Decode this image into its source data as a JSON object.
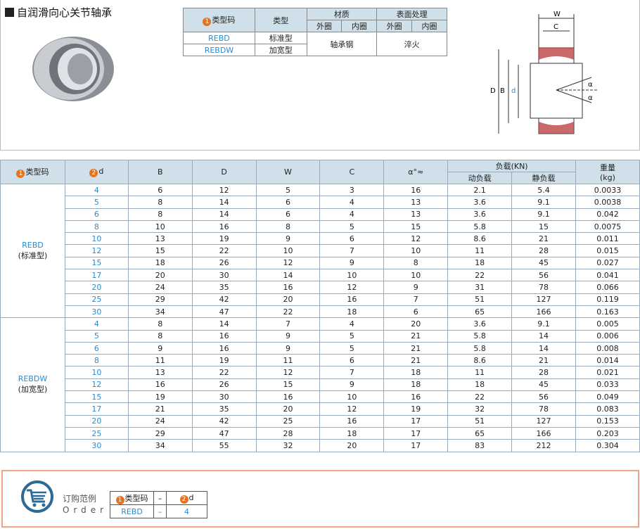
{
  "title": "自润滑向心关节轴承",
  "spec": {
    "h_type_code": "类型码",
    "h_type": "类型",
    "h_material": "材质",
    "h_surface": "表面处理",
    "outer": "外圈",
    "inner": "内圈",
    "rows": [
      {
        "code": "REBD",
        "type": "标准型"
      },
      {
        "code": "REBDW",
        "type": "加宽型"
      }
    ],
    "material": "轴承钢",
    "surface": "淬火"
  },
  "drawing": {
    "W": "W",
    "C": "C",
    "D": "D",
    "B": "B",
    "d": "d",
    "alpha": "α"
  },
  "table": {
    "headers": {
      "type_code": "类型码",
      "d": "d",
      "B": "B",
      "D": "D",
      "W": "W",
      "C": "C",
      "alpha": "α°≈",
      "load": "负载(KN)",
      "dynamic": "动负载",
      "static": "静负载",
      "weight": "重量",
      "weight_unit": "(kg)"
    },
    "groups": [
      {
        "code": "REBD",
        "type": "(标准型)",
        "rows": [
          [
            "4",
            "6",
            "12",
            "5",
            "3",
            "16",
            "2.1",
            "5.4",
            "0.0033"
          ],
          [
            "5",
            "8",
            "14",
            "6",
            "4",
            "13",
            "3.6",
            "9.1",
            "0.0038"
          ],
          [
            "6",
            "8",
            "14",
            "6",
            "4",
            "13",
            "3.6",
            "9.1",
            "0.042"
          ],
          [
            "8",
            "10",
            "16",
            "8",
            "5",
            "15",
            "5.8",
            "15",
            "0.0075"
          ],
          [
            "10",
            "13",
            "19",
            "9",
            "6",
            "12",
            "8.6",
            "21",
            "0.011"
          ],
          [
            "12",
            "15",
            "22",
            "10",
            "7",
            "10",
            "11",
            "28",
            "0.015"
          ],
          [
            "15",
            "18",
            "26",
            "12",
            "9",
            "8",
            "18",
            "45",
            "0.027"
          ],
          [
            "17",
            "20",
            "30",
            "14",
            "10",
            "10",
            "22",
            "56",
            "0.041"
          ],
          [
            "20",
            "24",
            "35",
            "16",
            "12",
            "9",
            "31",
            "78",
            "0.066"
          ],
          [
            "25",
            "29",
            "42",
            "20",
            "16",
            "7",
            "51",
            "127",
            "0.119"
          ],
          [
            "30",
            "34",
            "47",
            "22",
            "18",
            "6",
            "65",
            "166",
            "0.163"
          ]
        ]
      },
      {
        "code": "REBDW",
        "type": "(加宽型)",
        "rows": [
          [
            "4",
            "8",
            "14",
            "7",
            "4",
            "20",
            "3.6",
            "9.1",
            "0.005"
          ],
          [
            "5",
            "8",
            "16",
            "9",
            "5",
            "21",
            "5.8",
            "14",
            "0.006"
          ],
          [
            "6",
            "9",
            "16",
            "9",
            "5",
            "21",
            "5.8",
            "14",
            "0.008"
          ],
          [
            "8",
            "11",
            "19",
            "11",
            "6",
            "21",
            "8.6",
            "21",
            "0.014"
          ],
          [
            "10",
            "13",
            "22",
            "12",
            "7",
            "18",
            "11",
            "28",
            "0.021"
          ],
          [
            "12",
            "16",
            "26",
            "15",
            "9",
            "18",
            "18",
            "45",
            "0.033"
          ],
          [
            "15",
            "19",
            "30",
            "16",
            "10",
            "16",
            "22",
            "56",
            "0.049"
          ],
          [
            "17",
            "21",
            "35",
            "20",
            "12",
            "19",
            "32",
            "78",
            "0.083"
          ],
          [
            "20",
            "24",
            "42",
            "25",
            "16",
            "17",
            "51",
            "127",
            "0.153"
          ],
          [
            "25",
            "29",
            "47",
            "28",
            "18",
            "17",
            "65",
            "166",
            "0.203"
          ],
          [
            "30",
            "34",
            "55",
            "32",
            "20",
            "17",
            "83",
            "212",
            "0.304"
          ]
        ]
      }
    ]
  },
  "order": {
    "label_cn": "订购范例",
    "label_en": "Order",
    "h_code": "类型码",
    "dash": "–",
    "h_d": "d",
    "code": "REBD",
    "d": "4"
  },
  "colors": {
    "header_bg": "#cfe0ea",
    "accent_blue": "#2a8bd0",
    "badge_orange": "#e8731e",
    "order_border": "#f0a57a"
  }
}
